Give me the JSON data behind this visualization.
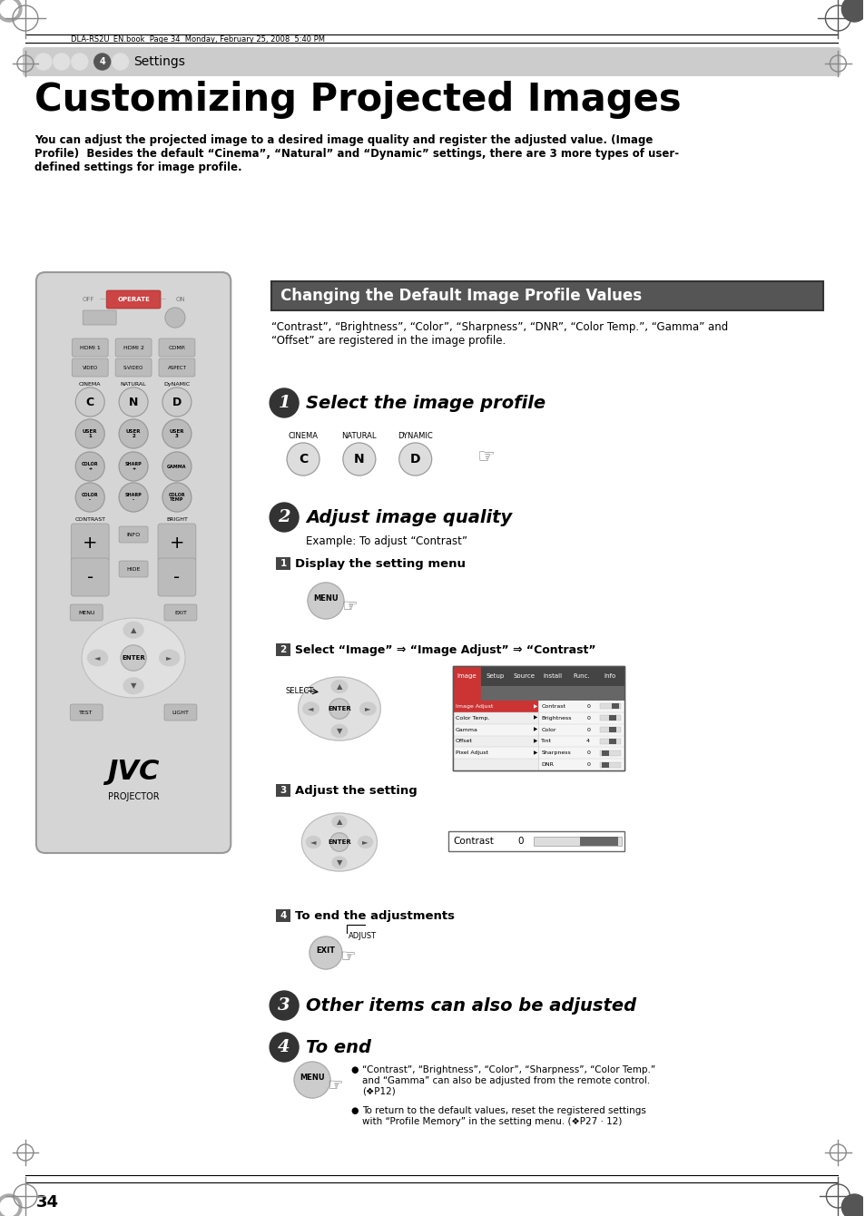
{
  "page_bg": "#ffffff",
  "header_text": "DLA-RS2U_EN.book  Page 34  Monday, February 25, 2008  5:40 PM",
  "chapter_label": "Settings",
  "chapter_bar_color": "#cccccc",
  "title": "Customizing Projected Images",
  "subtitle": "You can adjust the projected image to a desired image quality and register the adjusted value. (Image\nProfile)  Besides the default “Cinema”, “Natural” and “Dynamic” settings, there are 3 more types of user-\ndefined settings for image profile.",
  "section_title": "Changing the Default Image Profile Values",
  "section_title_bg": "#555555",
  "section_desc": "“Contrast”, “Brightness”, “Color”, “Sharpness”, “DNR”, “Color Temp.”, “Gamma” and\n“Offset” are registered in the image profile.",
  "step1_title": "Select the image profile",
  "step2_title": "Adjust image quality",
  "step2_example": "Example: To adjust “Contrast”",
  "step2_sub1": "Display the setting menu",
  "step2_sub2": "Select “Image” ⇒ “Image Adjust” ⇒ “Contrast”",
  "step2_sub3": "Adjust the setting",
  "step2_sub4": "To end the adjustments",
  "step3_title": "Other items can also be adjusted",
  "step4_title": "To end",
  "page_num": "34",
  "button_labels": [
    "C",
    "N",
    "D"
  ],
  "button_sublabels": [
    "CINEMA",
    "NATURAL",
    "DYNAMIC"
  ],
  "note1": "“Contrast”, “Brightness”, “Color”, “Sharpness”, “Color Temp.”\nand “Gamma” can also be adjusted from the remote control.\n(❖P12)",
  "note2": "To return to the default values, reset the registered settings\nwith “Profile Memory” in the setting menu. (❖P27 · 12)",
  "contrast_label": "Contrast",
  "contrast_value": "0",
  "tab_labels": [
    "Image",
    "Setup",
    "Source",
    "Install",
    "Func.",
    "Info"
  ],
  "menu_left": [
    "Image Adjust",
    "Color Temp.",
    "Gamma",
    "Offset",
    "Pixel Adjust",
    ""
  ],
  "menu_right": [
    "Contrast",
    "Brightness",
    "Color",
    "Tint",
    "Sharpness",
    "DNR"
  ],
  "menu_vals": [
    "0",
    "0",
    "0",
    "4",
    "0",
    "0"
  ]
}
